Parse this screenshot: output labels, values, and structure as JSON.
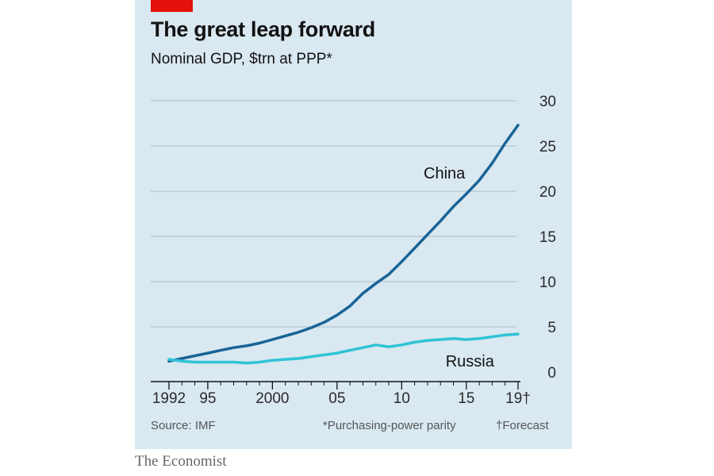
{
  "title": "The great leap forward",
  "subtitle": "Nominal GDP, $trn at PPP*",
  "source": "Source: IMF",
  "footnote": "*Purchasing-power parity",
  "footnote2": "†Forecast",
  "brand": "The Economist",
  "colors": {
    "background": "#d9e8f1",
    "accent": "#e3120b",
    "china": "#1a6496",
    "russia": "#2ec4d6",
    "grid": "#a9bfcc"
  },
  "chart_data": {
    "type": "line",
    "title": "The great leap forward",
    "subtitle": "Nominal GDP, $trn at PPP*",
    "xlabel": "",
    "ylabel": "",
    "xlim": [
      1992,
      2019
    ],
    "ylim": [
      0,
      30
    ],
    "yticks": [
      0,
      5,
      10,
      15,
      20,
      25,
      30
    ],
    "ytick_labels": [
      "0",
      "5",
      "10",
      "15",
      "20",
      "25",
      "30"
    ],
    "xticks": [
      1992,
      1995,
      2000,
      2005,
      2010,
      2015,
      2019
    ],
    "xtick_labels": [
      "1992",
      "95",
      "2000",
      "05",
      "10",
      "15",
      "19†"
    ],
    "x_minor_ticks": [
      1993,
      1994,
      1996,
      1997,
      1998,
      1999,
      2001,
      2002,
      2003,
      2004,
      2006,
      2007,
      2008,
      2009,
      2011,
      2012,
      2013,
      2014,
      2016,
      2017,
      2018
    ],
    "grid": true,
    "series": [
      {
        "name": "China",
        "label": "China",
        "x": [
          1992,
          1993,
          1994,
          1995,
          1996,
          1997,
          1998,
          1999,
          2000,
          2001,
          2002,
          2003,
          2004,
          2005,
          2006,
          2007,
          2008,
          2009,
          2010,
          2011,
          2012,
          2013,
          2014,
          2015,
          2016,
          2017,
          2018,
          2019
        ],
        "values": [
          1.2,
          1.5,
          1.8,
          2.1,
          2.4,
          2.7,
          2.9,
          3.2,
          3.6,
          4.0,
          4.4,
          4.9,
          5.5,
          6.3,
          7.3,
          8.7,
          9.8,
          10.8,
          12.2,
          13.7,
          15.2,
          16.7,
          18.3,
          19.7,
          21.2,
          23.1,
          25.3,
          27.3
        ]
      },
      {
        "name": "Russia",
        "label": "Russia",
        "x": [
          1992,
          1993,
          1994,
          1995,
          1996,
          1997,
          1998,
          1999,
          2000,
          2001,
          2002,
          2003,
          2004,
          2005,
          2006,
          2007,
          2008,
          2009,
          2010,
          2011,
          2012,
          2013,
          2014,
          2015,
          2016,
          2017,
          2018,
          2019
        ],
        "values": [
          1.4,
          1.2,
          1.1,
          1.1,
          1.1,
          1.1,
          1.0,
          1.1,
          1.3,
          1.4,
          1.5,
          1.7,
          1.9,
          2.1,
          2.4,
          2.7,
          3.0,
          2.8,
          3.0,
          3.3,
          3.5,
          3.6,
          3.7,
          3.6,
          3.7,
          3.9,
          4.1,
          4.2
        ]
      }
    ]
  }
}
